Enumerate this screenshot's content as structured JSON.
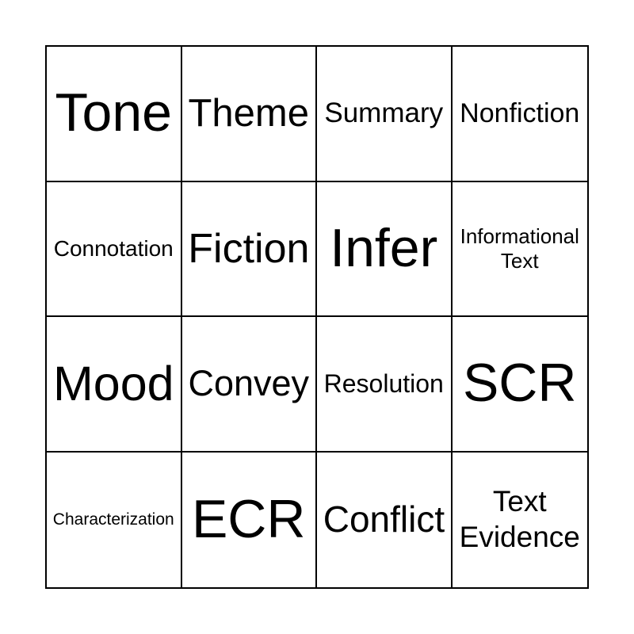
{
  "card": {
    "rows": 4,
    "cols": 4,
    "cells": [
      [
        "Tone",
        "Theme",
        "Summary",
        "Nonfiction"
      ],
      [
        "Connotation",
        "Fiction",
        "Infer",
        "Informational Text"
      ],
      [
        "Mood",
        "Convey",
        "Resolution",
        "SCR"
      ],
      [
        "Characterization",
        "ECR",
        "Conflict",
        "Text Evidence"
      ]
    ],
    "colors": {
      "background": "#ffffff",
      "grid_line": "#000000",
      "text": "#000000"
    }
  }
}
